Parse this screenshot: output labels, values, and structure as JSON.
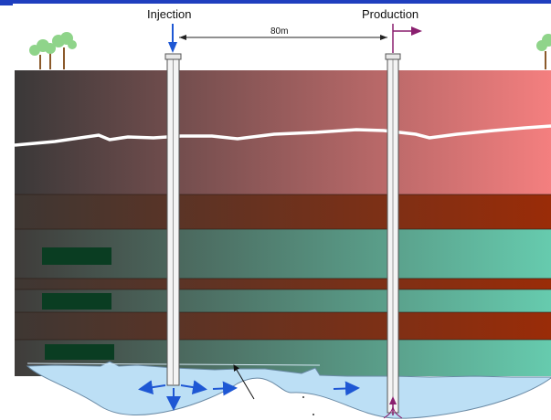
{
  "labels": {
    "injection": "Injection",
    "production": "Production",
    "distance": "80m"
  },
  "colors": {
    "top_strip": "#1f3fbf",
    "caprock_dark": "#3a3838",
    "caprock_light": "#f47f7f",
    "shale_dark": "#3e3733",
    "shale_light": "#9a2c08",
    "sand_dark": "#3f3c3a",
    "sand_light": "#66cbae",
    "water": "#bcdff5",
    "injection_arrow": "#1e57d4",
    "production_arrow": "#8a1f6f",
    "coal_block": "#0a3d22",
    "tree_foliage": "#8fd48a",
    "tree_trunk": "#8b5a2b"
  },
  "icons": {
    "injection_marker": "down-arrow-icon",
    "production_marker": "flag-arrow-icon",
    "trees": "tree-icon"
  }
}
